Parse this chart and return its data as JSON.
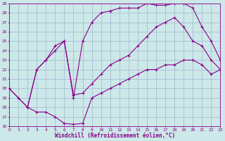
{
  "bg_color": "#cce8e8",
  "line_color": "#8b008b",
  "grid_color": "#99aacc",
  "xlabel": "Windchill (Refroidissement éolien,°C)",
  "ylim": [
    16,
    29
  ],
  "xlim": [
    0,
    23
  ],
  "yticks": [
    16,
    17,
    18,
    19,
    20,
    21,
    22,
    23,
    24,
    25,
    26,
    27,
    28,
    29
  ],
  "xticks": [
    0,
    1,
    2,
    3,
    4,
    5,
    6,
    7,
    8,
    9,
    10,
    11,
    12,
    13,
    14,
    15,
    16,
    17,
    18,
    19,
    20,
    21,
    22,
    23
  ],
  "curve1_x": [
    0,
    1,
    2,
    3,
    4,
    5,
    6,
    7,
    8,
    9,
    10,
    11,
    12,
    13,
    14,
    15,
    16,
    17,
    18,
    19,
    20,
    21,
    22,
    23
  ],
  "curve1_y": [
    20.0,
    19.0,
    18.0,
    17.5,
    17.5,
    17.0,
    16.3,
    16.2,
    16.3,
    19.0,
    19.5,
    20.0,
    20.5,
    21.0,
    21.5,
    22.0,
    22.0,
    22.5,
    22.5,
    23.0,
    23.0,
    22.5,
    21.5,
    22.0
  ],
  "curve2_x": [
    0,
    2,
    3,
    4,
    5,
    6,
    7,
    8,
    9,
    10,
    11,
    12,
    13,
    14,
    15,
    16,
    17,
    18,
    19,
    20,
    21,
    22,
    23
  ],
  "curve2_y": [
    20.0,
    18.0,
    22.0,
    23.0,
    24.5,
    25.0,
    19.0,
    25.0,
    27.0,
    28.0,
    28.2,
    28.5,
    28.5,
    28.5,
    29.0,
    28.8,
    28.8,
    29.0,
    29.0,
    28.5,
    26.5,
    25.0,
    23.0
  ],
  "curve3_x": [
    2,
    3,
    4,
    5,
    6,
    7,
    8,
    9,
    10,
    11,
    12,
    13,
    14,
    15,
    16,
    17,
    18,
    19,
    20,
    21,
    22,
    23
  ],
  "curve3_y": [
    18.0,
    22.0,
    23.0,
    24.0,
    25.0,
    19.3,
    19.5,
    20.5,
    21.5,
    22.5,
    23.0,
    23.5,
    24.5,
    25.5,
    26.5,
    27.0,
    27.5,
    26.5,
    25.0,
    24.5,
    23.0,
    22.0
  ],
  "marker": "+",
  "markersize": 3,
  "linewidth": 0.8
}
